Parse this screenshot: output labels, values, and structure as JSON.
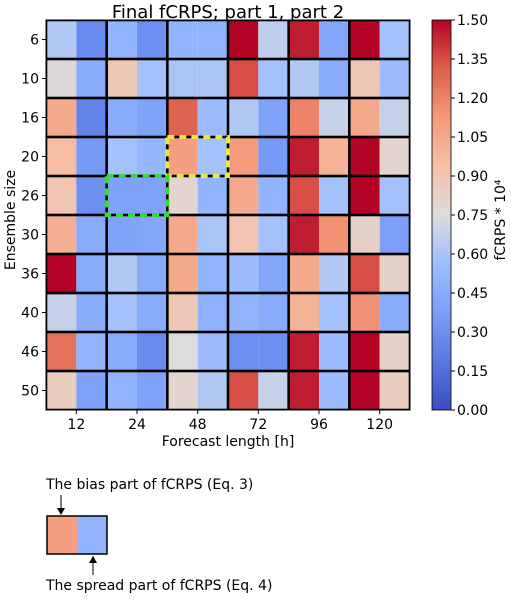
{
  "chart_data": {
    "type": "heatmap",
    "title": "Final fCRPS; part 1, part 2",
    "xlabel": "Forecast length [h]",
    "ylabel": "Ensemble size",
    "x_categories": [
      "12",
      "24",
      "48",
      "72",
      "96",
      "120"
    ],
    "y_categories": [
      "6",
      "10",
      "16",
      "20",
      "26",
      "30",
      "36",
      "40",
      "46",
      "50"
    ],
    "cell_parts": [
      "bias",
      "spread"
    ],
    "values_note": "values[row][col] = [bias part, spread part], fCRPS * 10^4",
    "values": [
      [
        [
          0.62,
          0.28
        ],
        [
          0.5,
          0.3
        ],
        [
          0.5,
          0.5
        ],
        [
          1.5,
          0.66
        ],
        [
          1.45,
          0.42
        ],
        [
          1.5,
          0.58
        ]
      ],
      [
        [
          0.76,
          0.45
        ],
        [
          0.88,
          0.58
        ],
        [
          0.6,
          0.6
        ],
        [
          1.35,
          0.58
        ],
        [
          0.62,
          0.45
        ],
        [
          0.88,
          0.55
        ]
      ],
      [
        [
          1.05,
          0.25
        ],
        [
          0.45,
          0.4
        ],
        [
          1.3,
          0.55
        ],
        [
          0.62,
          0.4
        ],
        [
          1.2,
          0.68
        ],
        [
          1.05,
          0.68
        ]
      ],
      [
        [
          0.95,
          0.35
        ],
        [
          0.58,
          0.52
        ],
        [
          1.1,
          0.58
        ],
        [
          1.12,
          0.35
        ],
        [
          1.45,
          1.0
        ],
        [
          1.5,
          0.8
        ]
      ],
      [
        [
          0.9,
          0.3
        ],
        [
          0.4,
          0.4
        ],
        [
          0.8,
          0.5
        ],
        [
          1.05,
          0.5
        ],
        [
          1.35,
          0.58
        ],
        [
          1.5,
          0.58
        ]
      ],
      [
        [
          1.02,
          0.45
        ],
        [
          0.4,
          0.42
        ],
        [
          1.05,
          0.6
        ],
        [
          0.9,
          0.58
        ],
        [
          1.45,
          1.15
        ],
        [
          0.82,
          0.38
        ]
      ],
      [
        [
          1.5,
          0.45
        ],
        [
          0.62,
          0.45
        ],
        [
          1.05,
          0.5
        ],
        [
          0.55,
          0.42
        ],
        [
          1.05,
          0.62
        ],
        [
          1.35,
          0.82
        ]
      ],
      [
        [
          0.68,
          0.45
        ],
        [
          0.58,
          0.45
        ],
        [
          0.88,
          0.48
        ],
        [
          0.5,
          0.45
        ],
        [
          1.0,
          0.58
        ],
        [
          1.15,
          0.45
        ]
      ],
      [
        [
          1.25,
          0.5
        ],
        [
          0.45,
          0.28
        ],
        [
          0.75,
          0.55
        ],
        [
          0.3,
          0.3
        ],
        [
          1.45,
          0.55
        ],
        [
          1.5,
          0.82
        ]
      ],
      [
        [
          0.85,
          0.4
        ],
        [
          0.5,
          0.4
        ],
        [
          0.8,
          0.62
        ],
        [
          1.35,
          0.68
        ],
        [
          1.45,
          0.55
        ],
        [
          1.5,
          0.85
        ]
      ]
    ],
    "highlights": [
      {
        "color": "#e8e84a",
        "rows": [
          "20",
          "20"
        ],
        "cols": [
          "48",
          "48"
        ],
        "style": "dashed"
      },
      {
        "color": "#33dd33",
        "rows": [
          "26",
          "26"
        ],
        "cols": [
          "24",
          "24"
        ],
        "style": "dashed"
      }
    ],
    "colorbar": {
      "label": "fCRPS * 10⁴",
      "min": 0.0,
      "max": 1.5,
      "ticks": [
        "0.00",
        "0.15",
        "0.30",
        "0.45",
        "0.60",
        "0.75",
        "0.90",
        "1.05",
        "1.20",
        "1.35",
        "1.50"
      ],
      "colormap": "coolwarm"
    },
    "legend": {
      "bias_label": "The bias part of fCRPS (Eq. 3)",
      "spread_label": "The spread part of fCRPS (Eq. 4)",
      "bias_value": 1.1,
      "spread_value": 0.5
    }
  }
}
